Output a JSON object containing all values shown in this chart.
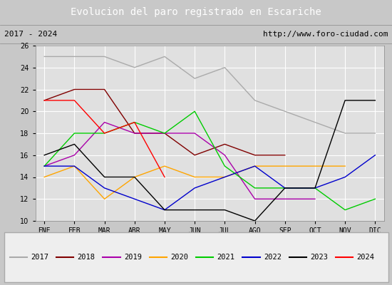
{
  "title": "Evolucion del paro registrado en Escariche",
  "subtitle_left": "2017 - 2024",
  "subtitle_right": "http://www.foro-ciudad.com",
  "ylim": [
    10,
    26
  ],
  "yticks": [
    10,
    12,
    14,
    16,
    18,
    20,
    22,
    24,
    26
  ],
  "months": [
    "ENE",
    "FEB",
    "MAR",
    "ABR",
    "MAY",
    "JUN",
    "JUL",
    "AGO",
    "SEP",
    "OCT",
    "NOV",
    "DIC"
  ],
  "series": [
    {
      "year": "2017",
      "color": "#aaaaaa",
      "linestyle": "-",
      "data": [
        [
          0,
          25
        ],
        [
          1,
          25
        ],
        [
          2,
          25
        ],
        [
          3,
          24
        ],
        [
          4,
          25
        ],
        [
          5,
          23
        ],
        [
          6,
          24
        ],
        [
          7,
          21
        ],
        [
          8,
          20
        ],
        [
          9,
          19
        ],
        [
          10,
          18
        ],
        [
          11,
          18
        ]
      ]
    },
    {
      "year": "2018",
      "color": "#800000",
      "linestyle": "-",
      "data": [
        [
          0,
          21
        ],
        [
          1,
          22
        ],
        [
          2,
          22
        ],
        [
          3,
          18
        ],
        [
          4,
          18
        ],
        [
          5,
          16
        ],
        [
          6,
          17
        ],
        [
          7,
          16
        ],
        [
          8,
          16
        ]
      ]
    },
    {
      "year": "2019",
      "color": "#aa00aa",
      "linestyle": "-",
      "data": [
        [
          0,
          15
        ],
        [
          1,
          16
        ],
        [
          2,
          19
        ],
        [
          3,
          18
        ],
        [
          4,
          18
        ],
        [
          5,
          18
        ],
        [
          6,
          16
        ],
        [
          7,
          12
        ],
        [
          8,
          12
        ],
        [
          9,
          12
        ]
      ]
    },
    {
      "year": "2020",
      "color": "#ffa500",
      "linestyle": "-",
      "data": [
        [
          0,
          14
        ],
        [
          1,
          15
        ],
        [
          2,
          12
        ],
        [
          3,
          14
        ],
        [
          4,
          15
        ],
        [
          5,
          14
        ],
        [
          6,
          14
        ],
        [
          7,
          15
        ],
        [
          8,
          15
        ],
        [
          9,
          15
        ],
        [
          10,
          15
        ]
      ]
    },
    {
      "year": "2021",
      "color": "#00cc00",
      "linestyle": "-",
      "data": [
        [
          0,
          15
        ],
        [
          1,
          18
        ],
        [
          2,
          18
        ],
        [
          3,
          19
        ],
        [
          4,
          18
        ],
        [
          5,
          20
        ],
        [
          6,
          15
        ],
        [
          7,
          13
        ],
        [
          8,
          13
        ],
        [
          9,
          13
        ],
        [
          10,
          11
        ],
        [
          11,
          12
        ]
      ]
    },
    {
      "year": "2022",
      "color": "#0000cc",
      "linestyle": "-",
      "data": [
        [
          0,
          15
        ],
        [
          1,
          15
        ],
        [
          2,
          13
        ],
        [
          3,
          12
        ],
        [
          4,
          11
        ],
        [
          5,
          13
        ],
        [
          6,
          14
        ],
        [
          7,
          15
        ],
        [
          8,
          13
        ],
        [
          9,
          13
        ],
        [
          10,
          14
        ],
        [
          11,
          16
        ]
      ]
    },
    {
      "year": "2023",
      "color": "#000000",
      "linestyle": "-",
      "data": [
        [
          0,
          16
        ],
        [
          1,
          17
        ],
        [
          2,
          14
        ],
        [
          3,
          14
        ],
        [
          4,
          11
        ],
        [
          5,
          11
        ],
        [
          6,
          11
        ],
        [
          7,
          10
        ],
        [
          8,
          13
        ],
        [
          9,
          13
        ],
        [
          10,
          21
        ],
        [
          11,
          21
        ]
      ]
    },
    {
      "year": "2024",
      "color": "#ff0000",
      "linestyle": "-",
      "data": [
        [
          0,
          21
        ],
        [
          1,
          21
        ],
        [
          2,
          18
        ],
        [
          3,
          19
        ],
        [
          4,
          14
        ]
      ]
    }
  ],
  "fig_bg_color": "#c8c8c8",
  "plot_bg_color": "#e0e0e0",
  "title_bg_color": "#4472c4",
  "title_color": "#ffffff",
  "subtitle_bg_color": "#d8d8d8",
  "grid_color": "#ffffff",
  "legend_bg": "#eeeeee",
  "legend_border": "#aaaaaa"
}
